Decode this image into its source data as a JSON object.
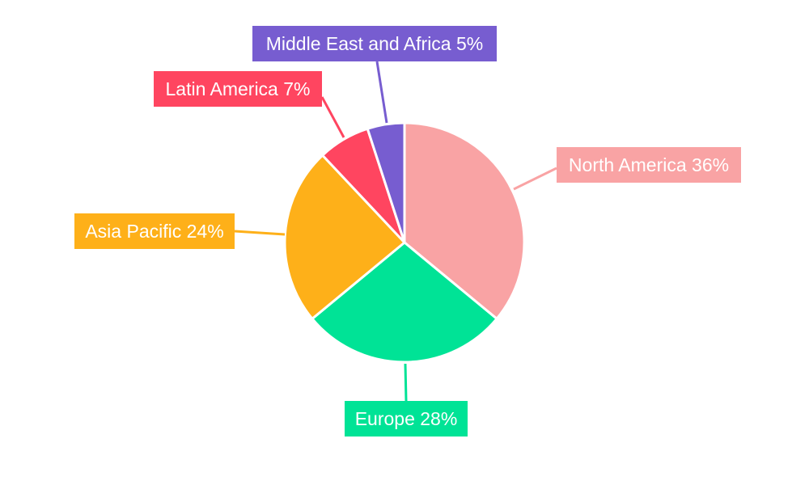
{
  "chart_data": {
    "type": "pie",
    "title": "",
    "start_angle": "top, clockwise",
    "legend": "none",
    "slices": [
      {
        "label": "North America",
        "value": 36,
        "display": "North America 36%",
        "color": "#F9A3A4"
      },
      {
        "label": "Europe",
        "value": 28,
        "display": "Europe 28%",
        "color": "#00E396"
      },
      {
        "label": "Asia Pacific",
        "value": 24,
        "display": "Asia Pacific 24%",
        "color": "#FEB019"
      },
      {
        "label": "Latin America",
        "value": 7,
        "display": "Latin America 7%",
        "color": "#FF4560"
      },
      {
        "label": "Middle East and Africa",
        "value": 5,
        "display": "Middle East and Africa 5%",
        "color": "#775DD0"
      }
    ]
  }
}
